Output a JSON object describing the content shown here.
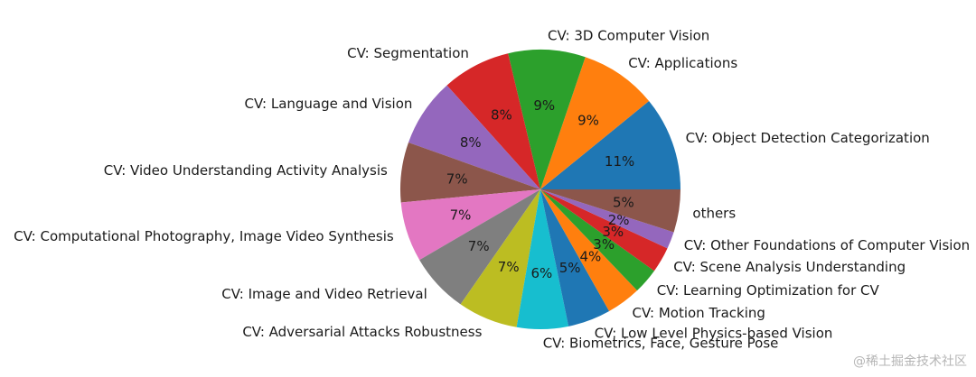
{
  "chart_data": {
    "type": "pie",
    "title": "",
    "start_angle_deg": 0,
    "direction": "counterclockwise",
    "slices": [
      {
        "label": "CV: Object Detection Categorization",
        "value": 11,
        "pct_label": "11%",
        "color": "#1f77b4"
      },
      {
        "label": "CV: Applications",
        "value": 9,
        "pct_label": "9%",
        "color": "#ff7f0e"
      },
      {
        "label": "CV: 3D Computer Vision",
        "value": 9,
        "pct_label": "9%",
        "color": "#2ca02c"
      },
      {
        "label": "CV: Segmentation",
        "value": 8,
        "pct_label": "8%",
        "color": "#d62728"
      },
      {
        "label": "CV: Language and Vision",
        "value": 8,
        "pct_label": "8%",
        "color": "#9467bd"
      },
      {
        "label": "CV: Video Understanding Activity Analysis",
        "value": 7,
        "pct_label": "7%",
        "color": "#8c564b"
      },
      {
        "label": "CV: Computational Photography, Image Video Synthesis",
        "value": 7,
        "pct_label": "7%",
        "color": "#e377c2"
      },
      {
        "label": "CV: Image and Video Retrieval",
        "value": 7,
        "pct_label": "7%",
        "color": "#7f7f7f"
      },
      {
        "label": "CV: Adversarial Attacks Robustness",
        "value": 7,
        "pct_label": "7%",
        "color": "#bcbd22"
      },
      {
        "label": "CV: Biometrics, Face, Gesture Pose",
        "value": 6,
        "pct_label": "6%",
        "color": "#17becf"
      },
      {
        "label": "CV: Low Level Physics-based Vision",
        "value": 5,
        "pct_label": "5%",
        "color": "#1f77b4"
      },
      {
        "label": "CV: Motion Tracking",
        "value": 4,
        "pct_label": "4%",
        "color": "#ff7f0e"
      },
      {
        "label": "CV: Learning Optimization for CV",
        "value": 3,
        "pct_label": "3%",
        "color": "#2ca02c"
      },
      {
        "label": "CV: Scene Analysis Understanding",
        "value": 3,
        "pct_label": "3%",
        "color": "#d62728"
      },
      {
        "label": "CV: Other Foundations of Computer Vision",
        "value": 2,
        "pct_label": "2%",
        "color": "#9467bd"
      },
      {
        "label": "others",
        "value": 5,
        "pct_label": "5%",
        "color": "#8c564b"
      }
    ]
  },
  "watermark": "@稀土掘金技术社区"
}
